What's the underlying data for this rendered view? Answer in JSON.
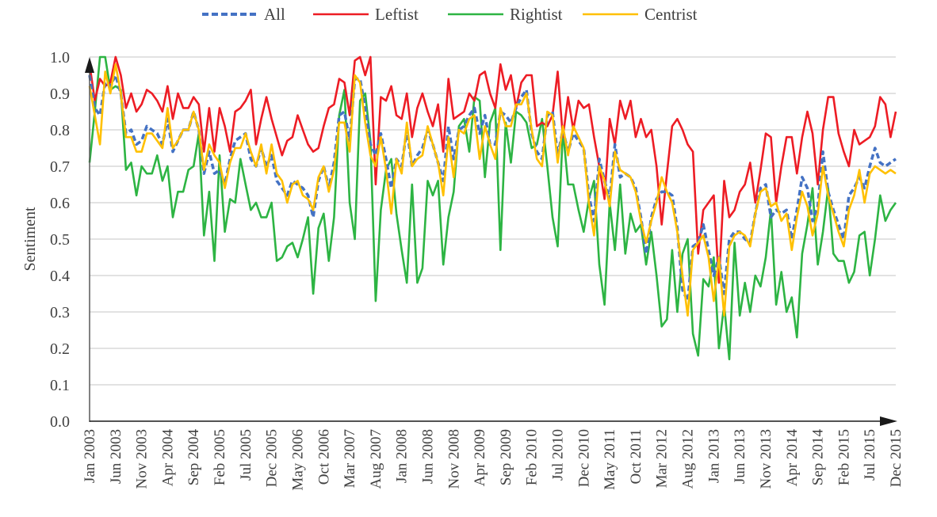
{
  "chart_data": {
    "type": "line",
    "title": "",
    "xlabel": "",
    "ylabel": "Sentiment",
    "ylim": [
      0,
      1.0
    ],
    "yticks": [
      "0.0",
      "0.1",
      "0.2",
      "0.3",
      "0.4",
      "0.5",
      "0.6",
      "0.7",
      "0.8",
      "0.9",
      "1.0"
    ],
    "grid": true,
    "legend_position": "top-center",
    "x_start": "Jan 2003",
    "x_end": "Dec 2015",
    "x_frequency": "monthly",
    "xtick_every_months": 5,
    "xticks": [
      "Jan 2003",
      "Jun 2003",
      "Nov 2003",
      "Apr 2004",
      "Sep 2004",
      "Feb 2005",
      "Jul 2005",
      "Dec 2005",
      "May 2006",
      "Oct 2006",
      "Mar 2007",
      "Aug 2007",
      "Jan 2008",
      "Jun 2008",
      "Nov 2008",
      "Apr 2009",
      "Sep 2009",
      "Feb 2010",
      "Jul 2010",
      "Dec 2010",
      "May 2011",
      "Oct 2011",
      "Mar 2012",
      "Aug 2012",
      "Jan 2013",
      "Jun 2013",
      "Nov 2013",
      "Apr 2014",
      "Sep 2014",
      "Feb 2015",
      "Jul 2015",
      "Dec 2015"
    ],
    "series": [
      {
        "name": "All",
        "color": "#4472C4",
        "dashed": true,
        "values": [
          0.95,
          0.86,
          0.84,
          0.93,
          0.92,
          0.95,
          0.9,
          0.79,
          0.8,
          0.76,
          0.77,
          0.81,
          0.8,
          0.79,
          0.76,
          0.83,
          0.74,
          0.77,
          0.8,
          0.8,
          0.85,
          0.8,
          0.68,
          0.74,
          0.68,
          0.69,
          0.65,
          0.72,
          0.77,
          0.78,
          0.79,
          0.72,
          0.7,
          0.75,
          0.7,
          0.73,
          0.66,
          0.64,
          0.62,
          0.66,
          0.65,
          0.64,
          0.62,
          0.56,
          0.66,
          0.7,
          0.64,
          0.71,
          0.84,
          0.85,
          0.77,
          0.94,
          0.94,
          0.86,
          0.76,
          0.73,
          0.79,
          0.72,
          0.64,
          0.72,
          0.7,
          0.8,
          0.7,
          0.73,
          0.75,
          0.8,
          0.76,
          0.71,
          0.66,
          0.81,
          0.72,
          0.8,
          0.81,
          0.84,
          0.86,
          0.79,
          0.84,
          0.76,
          0.76,
          0.85,
          0.84,
          0.82,
          0.86,
          0.89,
          0.91,
          0.79,
          0.74,
          0.72,
          0.84,
          0.85,
          0.73,
          0.8,
          0.74,
          0.79,
          0.77,
          0.75,
          0.62,
          0.55,
          0.72,
          0.66,
          0.61,
          0.76,
          0.67,
          0.68,
          0.67,
          0.64,
          0.56,
          0.46,
          0.56,
          0.61,
          0.63,
          0.63,
          0.62,
          0.53,
          0.36,
          0.33,
          0.48,
          0.49,
          0.54,
          0.47,
          0.4,
          0.45,
          0.35,
          0.5,
          0.52,
          0.52,
          0.5,
          0.49,
          0.57,
          0.64,
          0.65,
          0.56,
          0.58,
          0.57,
          0.58,
          0.5,
          0.58,
          0.67,
          0.64,
          0.55,
          0.59,
          0.74,
          0.63,
          0.58,
          0.54,
          0.5,
          0.62,
          0.64,
          0.67,
          0.64,
          0.7,
          0.75,
          0.71,
          0.7,
          0.71,
          0.72
        ]
      },
      {
        "name": "Leftist",
        "color": "#ED1C24",
        "dashed": false,
        "values": [
          0.98,
          0.88,
          0.94,
          0.92,
          0.93,
          1.0,
          0.95,
          0.86,
          0.9,
          0.85,
          0.87,
          0.91,
          0.9,
          0.88,
          0.85,
          0.92,
          0.83,
          0.9,
          0.86,
          0.86,
          0.89,
          0.87,
          0.74,
          0.86,
          0.74,
          0.86,
          0.81,
          0.74,
          0.85,
          0.86,
          0.88,
          0.91,
          0.76,
          0.83,
          0.89,
          0.83,
          0.78,
          0.73,
          0.77,
          0.78,
          0.84,
          0.8,
          0.76,
          0.74,
          0.75,
          0.81,
          0.86,
          0.87,
          0.94,
          0.93,
          0.84,
          0.99,
          1.0,
          0.95,
          1.0,
          0.65,
          0.89,
          0.88,
          0.92,
          0.84,
          0.83,
          0.9,
          0.78,
          0.86,
          0.9,
          0.85,
          0.81,
          0.87,
          0.74,
          0.94,
          0.83,
          0.84,
          0.85,
          0.9,
          0.88,
          0.95,
          0.96,
          0.9,
          0.86,
          0.98,
          0.91,
          0.95,
          0.86,
          0.93,
          0.95,
          0.95,
          0.81,
          0.82,
          0.81,
          0.84,
          0.96,
          0.78,
          0.89,
          0.8,
          0.88,
          0.86,
          0.87,
          0.78,
          0.7,
          0.61,
          0.83,
          0.76,
          0.88,
          0.83,
          0.88,
          0.78,
          0.83,
          0.78,
          0.8,
          0.7,
          0.54,
          0.68,
          0.81,
          0.83,
          0.8,
          0.76,
          0.74,
          0.46,
          0.58,
          0.6,
          0.62,
          0.38,
          0.66,
          0.56,
          0.58,
          0.63,
          0.65,
          0.71,
          0.6,
          0.69,
          0.79,
          0.78,
          0.6,
          0.7,
          0.78,
          0.78,
          0.68,
          0.78,
          0.85,
          0.79,
          0.65,
          0.8,
          0.89,
          0.89,
          0.79,
          0.74,
          0.7,
          0.8,
          0.76,
          0.77,
          0.78,
          0.81,
          0.89,
          0.87,
          0.78,
          0.85
        ]
      },
      {
        "name": "Rightist",
        "color": "#2DB443",
        "dashed": false,
        "values": [
          0.71,
          0.85,
          1.0,
          1.0,
          0.91,
          0.92,
          0.91,
          0.69,
          0.71,
          0.62,
          0.7,
          0.68,
          0.68,
          0.73,
          0.66,
          0.7,
          0.56,
          0.63,
          0.63,
          0.69,
          0.7,
          0.79,
          0.51,
          0.63,
          0.44,
          0.73,
          0.52,
          0.61,
          0.6,
          0.72,
          0.65,
          0.58,
          0.6,
          0.56,
          0.56,
          0.6,
          0.44,
          0.45,
          0.48,
          0.49,
          0.45,
          0.5,
          0.56,
          0.35,
          0.53,
          0.57,
          0.44,
          0.56,
          0.84,
          0.91,
          0.6,
          0.5,
          0.88,
          0.9,
          0.77,
          0.33,
          0.58,
          0.69,
          0.72,
          0.57,
          0.47,
          0.38,
          0.65,
          0.38,
          0.42,
          0.66,
          0.62,
          0.66,
          0.43,
          0.56,
          0.63,
          0.81,
          0.83,
          0.74,
          0.89,
          0.88,
          0.67,
          0.82,
          0.86,
          0.47,
          0.82,
          0.71,
          0.85,
          0.84,
          0.82,
          0.75,
          0.76,
          0.83,
          0.7,
          0.56,
          0.48,
          0.8,
          0.65,
          0.65,
          0.58,
          0.52,
          0.61,
          0.66,
          0.43,
          0.32,
          0.6,
          0.47,
          0.65,
          0.46,
          0.57,
          0.52,
          0.54,
          0.43,
          0.52,
          0.4,
          0.26,
          0.28,
          0.47,
          0.3,
          0.46,
          0.5,
          0.24,
          0.18,
          0.39,
          0.37,
          0.45,
          0.2,
          0.32,
          0.17,
          0.49,
          0.29,
          0.38,
          0.3,
          0.4,
          0.37,
          0.45,
          0.58,
          0.32,
          0.41,
          0.3,
          0.34,
          0.23,
          0.46,
          0.54,
          0.64,
          0.43,
          0.52,
          0.64,
          0.46,
          0.44,
          0.44,
          0.38,
          0.41,
          0.51,
          0.52,
          0.4,
          0.5,
          0.62,
          0.55,
          0.58,
          0.6
        ]
      },
      {
        "name": "Centrist",
        "color": "#FFC000",
        "dashed": false,
        "values": [
          0.92,
          0.84,
          0.76,
          0.96,
          0.9,
          0.98,
          0.9,
          0.78,
          0.78,
          0.74,
          0.74,
          0.79,
          0.79,
          0.77,
          0.75,
          0.86,
          0.75,
          0.77,
          0.8,
          0.8,
          0.85,
          0.8,
          0.69,
          0.76,
          0.73,
          0.71,
          0.64,
          0.71,
          0.75,
          0.75,
          0.79,
          0.74,
          0.7,
          0.76,
          0.68,
          0.76,
          0.68,
          0.66,
          0.6,
          0.65,
          0.66,
          0.62,
          0.61,
          0.58,
          0.67,
          0.7,
          0.63,
          0.69,
          0.82,
          0.82,
          0.74,
          0.95,
          0.93,
          0.82,
          0.73,
          0.7,
          0.78,
          0.69,
          0.57,
          0.72,
          0.68,
          0.82,
          0.7,
          0.72,
          0.73,
          0.81,
          0.76,
          0.71,
          0.62,
          0.78,
          0.67,
          0.8,
          0.79,
          0.83,
          0.84,
          0.72,
          0.81,
          0.76,
          0.72,
          0.86,
          0.81,
          0.81,
          0.87,
          0.87,
          0.9,
          0.8,
          0.72,
          0.7,
          0.85,
          0.84,
          0.71,
          0.81,
          0.73,
          0.81,
          0.78,
          0.75,
          0.6,
          0.51,
          0.7,
          0.66,
          0.59,
          0.74,
          0.69,
          0.68,
          0.67,
          0.63,
          0.55,
          0.49,
          0.55,
          0.6,
          0.67,
          0.63,
          0.6,
          0.52,
          0.4,
          0.29,
          0.47,
          0.49,
          0.51,
          0.45,
          0.33,
          0.45,
          0.29,
          0.48,
          0.51,
          0.52,
          0.51,
          0.48,
          0.57,
          0.63,
          0.64,
          0.59,
          0.6,
          0.55,
          0.57,
          0.47,
          0.56,
          0.63,
          0.59,
          0.51,
          0.57,
          0.7,
          0.62,
          0.57,
          0.52,
          0.48,
          0.58,
          0.62,
          0.69,
          0.6,
          0.68,
          0.7,
          0.69,
          0.68,
          0.69,
          0.68
        ]
      }
    ]
  }
}
